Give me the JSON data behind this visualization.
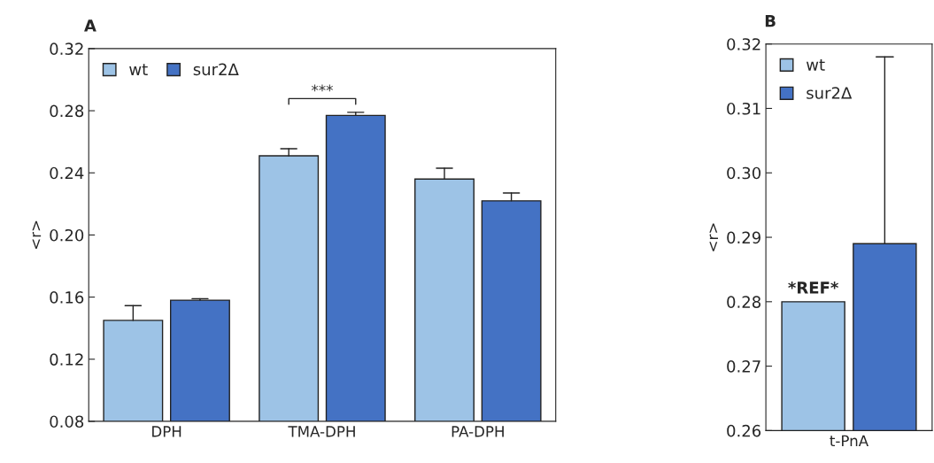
{
  "chart_data": [
    {
      "type": "bar",
      "title": "A",
      "ylabel": "<r>",
      "categories": [
        "DPH",
        "TMA-DPH",
        "PA-DPH"
      ],
      "series": [
        {
          "name": "wt",
          "color": "#9dc3e6",
          "values": [
            0.145,
            0.251,
            0.236
          ],
          "errors": [
            [
              0.145,
              0.1545
            ],
            [
              0.251,
              0.2555
            ],
            [
              0.236,
              0.243
            ]
          ]
        },
        {
          "name": "sur2Δ",
          "color": "#4472c4",
          "values": [
            0.158,
            0.277,
            0.222
          ],
          "errors": [
            [
              0.158,
              0.159
            ],
            [
              0.277,
              0.279
            ],
            [
              0.222,
              0.227
            ]
          ]
        }
      ],
      "ylim": [
        0.08,
        0.32
      ],
      "yticks": [
        0.08,
        0.12,
        0.16,
        {
          "value": 0.2,
          "label": "0.20"
        },
        0.24,
        0.28,
        0.32
      ],
      "annotations": [
        "***"
      ],
      "legend": "top left",
      "grid": false
    },
    {
      "type": "bar",
      "title": "B",
      "ylabel": "<r>",
      "categories": [
        "t-PnA"
      ],
      "series": [
        {
          "name": "wt",
          "color": "#9dc3e6",
          "values": [
            0.28
          ]
        },
        {
          "name": "sur2Δ",
          "color": "#4472c4",
          "values": [
            0.289
          ],
          "errors": [
            [
              0.289,
              0.318
            ]
          ]
        }
      ],
      "ylim": [
        0.26,
        0.32
      ],
      "yticks": [
        0.26,
        0.27,
        0.28,
        0.29,
        {
          "value": 0.3,
          "label": "0.30"
        },
        0.31,
        0.32
      ],
      "annotations": [
        {
          "text": "*REF*",
          "x": "t-PnA",
          "y": 0.28
        }
      ],
      "legend": "top left",
      "grid": false
    }
  ]
}
